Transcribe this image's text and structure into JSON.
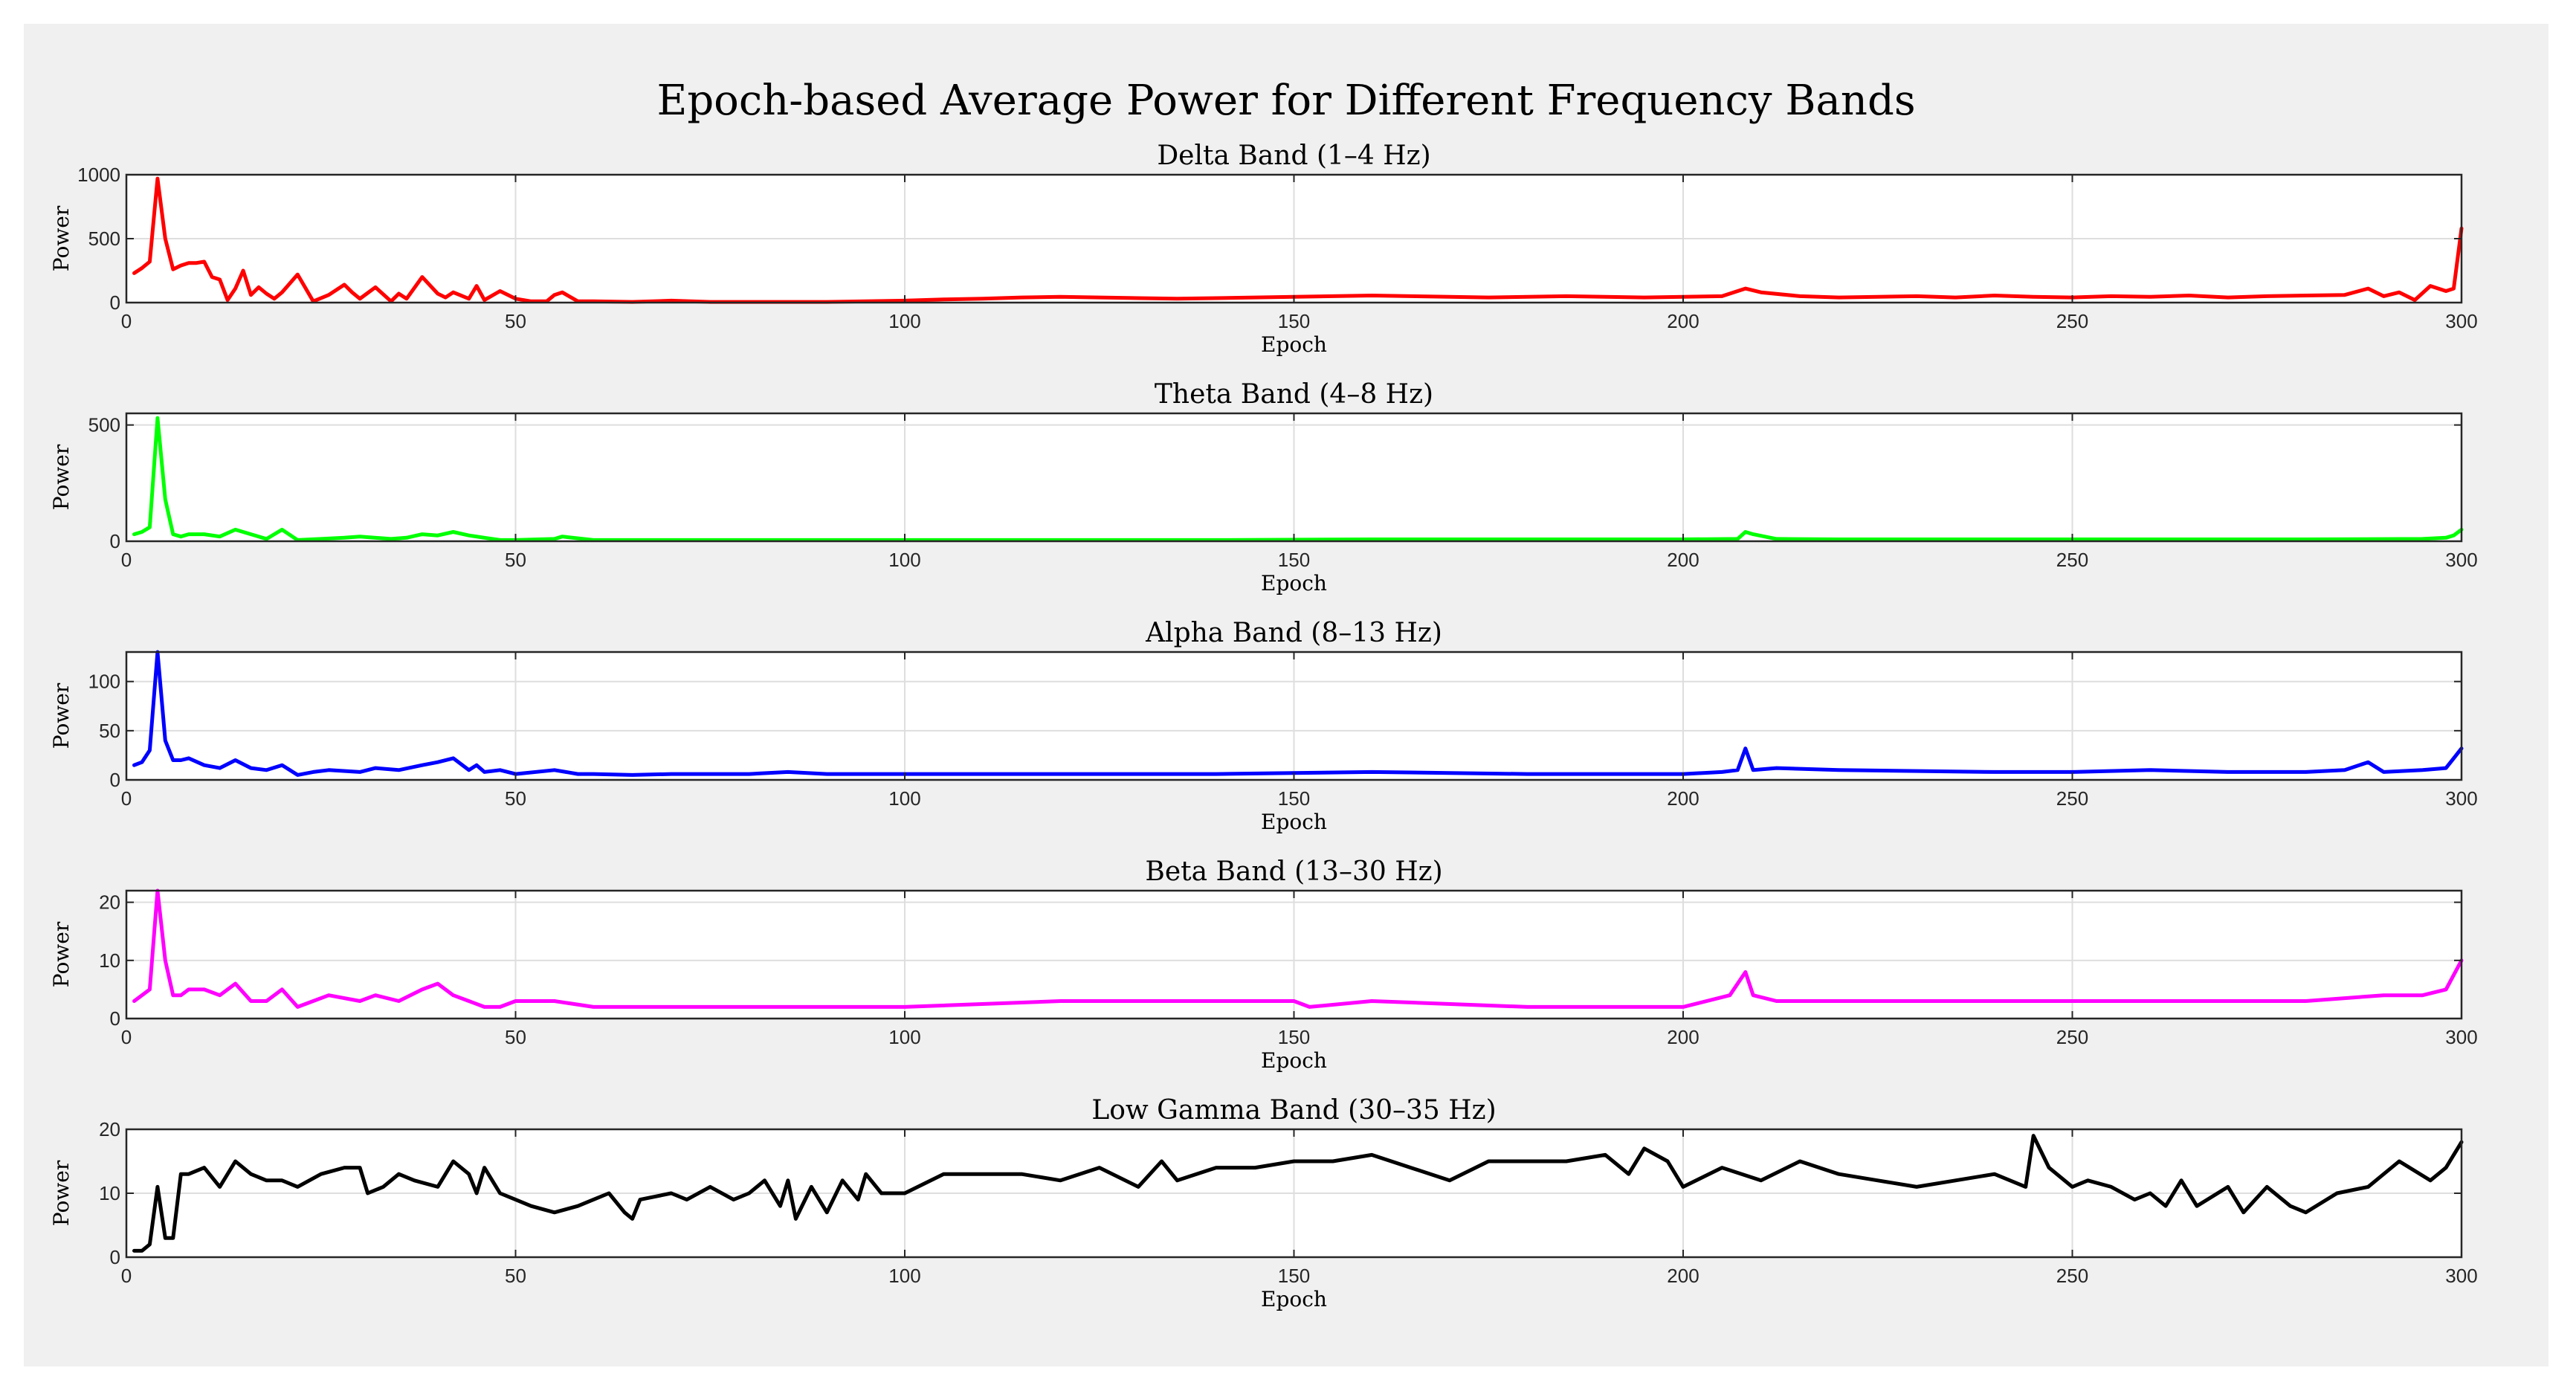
{
  "figure": {
    "title": "Epoch-based Average Power for Different Frequency Bands",
    "background": "#f0f0f0",
    "plot_background": "#ffffff"
  },
  "chart_data": [
    {
      "type": "line",
      "title": "Delta Band (1–4 Hz)",
      "xlabel": "Epoch",
      "ylabel": "Power",
      "color": "#ff0000",
      "xlim": [
        0,
        300
      ],
      "ylim": [
        0,
        1000
      ],
      "xticks": [
        0,
        50,
        100,
        150,
        200,
        250,
        300
      ],
      "yticks": [
        0,
        500,
        1000
      ],
      "grid": true,
      "series": [
        {
          "name": "Delta",
          "x": [
            1,
            2,
            3,
            4,
            5,
            6,
            7,
            8,
            9,
            10,
            11,
            12,
            13,
            14,
            15,
            16,
            17,
            18,
            19,
            20,
            22,
            24,
            26,
            28,
            29,
            30,
            32,
            34,
            35,
            36,
            38,
            40,
            41,
            42,
            44,
            45,
            46,
            48,
            50,
            52,
            54,
            55,
            56,
            58,
            60,
            65,
            70,
            75,
            80,
            85,
            90,
            95,
            100,
            105,
            110,
            115,
            120,
            125,
            130,
            135,
            140,
            145,
            150,
            155,
            160,
            165,
            170,
            175,
            180,
            185,
            190,
            195,
            200,
            205,
            208,
            210,
            215,
            220,
            225,
            230,
            235,
            240,
            245,
            250,
            255,
            260,
            265,
            270,
            275,
            280,
            285,
            288,
            290,
            292,
            294,
            296,
            298,
            299,
            300
          ],
          "y": [
            230,
            270,
            320,
            970,
            500,
            260,
            290,
            310,
            310,
            320,
            200,
            180,
            20,
            110,
            250,
            60,
            120,
            70,
            30,
            80,
            220,
            10,
            60,
            140,
            80,
            30,
            120,
            10,
            70,
            30,
            200,
            70,
            40,
            80,
            30,
            130,
            20,
            90,
            30,
            10,
            10,
            60,
            80,
            10,
            10,
            5,
            15,
            5,
            5,
            5,
            5,
            10,
            15,
            25,
            30,
            40,
            45,
            40,
            35,
            30,
            35,
            40,
            45,
            50,
            55,
            50,
            45,
            40,
            45,
            50,
            45,
            40,
            45,
            50,
            110,
            80,
            50,
            40,
            45,
            50,
            40,
            55,
            45,
            40,
            50,
            45,
            55,
            40,
            50,
            55,
            60,
            110,
            50,
            80,
            20,
            130,
            90,
            110,
            580
          ]
        }
      ]
    },
    {
      "type": "line",
      "title": "Theta Band (4–8 Hz)",
      "xlabel": "Epoch",
      "ylabel": "Power",
      "color": "#00ff00",
      "xlim": [
        0,
        300
      ],
      "ylim": [
        0,
        550
      ],
      "xticks": [
        0,
        50,
        100,
        150,
        200,
        250,
        300
      ],
      "yticks": [
        0,
        500
      ],
      "grid": true,
      "series": [
        {
          "name": "Theta",
          "x": [
            1,
            2,
            3,
            4,
            5,
            6,
            7,
            8,
            10,
            12,
            14,
            16,
            18,
            20,
            22,
            25,
            28,
            30,
            34,
            36,
            38,
            40,
            42,
            44,
            46,
            48,
            50,
            55,
            56,
            60,
            70,
            80,
            90,
            100,
            120,
            140,
            160,
            180,
            200,
            207,
            208,
            209,
            212,
            220,
            240,
            260,
            280,
            295,
            298,
            299,
            300
          ],
          "y": [
            30,
            40,
            60,
            530,
            180,
            30,
            20,
            30,
            30,
            20,
            50,
            30,
            10,
            50,
            5,
            10,
            15,
            20,
            10,
            15,
            30,
            25,
            40,
            25,
            15,
            5,
            5,
            10,
            20,
            5,
            5,
            5,
            5,
            5,
            5,
            5,
            8,
            8,
            8,
            10,
            40,
            30,
            10,
            8,
            8,
            8,
            8,
            10,
            15,
            25,
            50
          ]
        }
      ]
    },
    {
      "type": "line",
      "title": "Alpha Band (8–13 Hz)",
      "xlabel": "Epoch",
      "ylabel": "Power",
      "color": "#0000ff",
      "xlim": [
        0,
        300
      ],
      "ylim": [
        0,
        130
      ],
      "xticks": [
        0,
        50,
        100,
        150,
        200,
        250,
        300
      ],
      "yticks": [
        0,
        50,
        100
      ],
      "grid": true,
      "series": [
        {
          "name": "Alpha",
          "x": [
            1,
            2,
            3,
            4,
            5,
            6,
            7,
            8,
            10,
            12,
            14,
            16,
            18,
            20,
            22,
            24,
            26,
            30,
            32,
            35,
            38,
            40,
            42,
            44,
            45,
            46,
            48,
            50,
            55,
            58,
            60,
            65,
            70,
            75,
            80,
            85,
            90,
            95,
            100,
            120,
            140,
            160,
            180,
            200,
            205,
            207,
            208,
            209,
            212,
            220,
            240,
            250,
            260,
            270,
            280,
            285,
            288,
            290,
            295,
            298,
            300
          ],
          "y": [
            15,
            18,
            30,
            130,
            40,
            20,
            20,
            22,
            15,
            12,
            20,
            12,
            10,
            15,
            5,
            8,
            10,
            8,
            12,
            10,
            15,
            18,
            22,
            10,
            15,
            8,
            10,
            6,
            10,
            6,
            6,
            5,
            6,
            6,
            6,
            8,
            6,
            6,
            6,
            6,
            6,
            8,
            6,
            6,
            8,
            10,
            32,
            10,
            12,
            10,
            8,
            8,
            10,
            8,
            8,
            10,
            18,
            8,
            10,
            12,
            32
          ]
        }
      ]
    },
    {
      "type": "line",
      "title": "Beta Band (13–30 Hz)",
      "xlabel": "Epoch",
      "ylabel": "Power",
      "color": "#ff00ff",
      "xlim": [
        0,
        300
      ],
      "ylim": [
        0,
        22
      ],
      "xticks": [
        0,
        50,
        100,
        150,
        200,
        250,
        300
      ],
      "yticks": [
        0,
        10,
        20
      ],
      "grid": true,
      "series": [
        {
          "name": "Beta",
          "x": [
            1,
            2,
            3,
            4,
            5,
            6,
            7,
            8,
            10,
            12,
            14,
            16,
            18,
            20,
            22,
            24,
            26,
            30,
            32,
            35,
            38,
            40,
            42,
            44,
            46,
            48,
            50,
            55,
            60,
            70,
            80,
            90,
            100,
            120,
            140,
            150,
            152,
            160,
            180,
            200,
            206,
            208,
            209,
            212,
            220,
            240,
            260,
            280,
            290,
            295,
            298,
            300
          ],
          "y": [
            3,
            4,
            5,
            22,
            10,
            4,
            4,
            5,
            5,
            4,
            6,
            3,
            3,
            5,
            2,
            3,
            4,
            3,
            4,
            3,
            5,
            6,
            4,
            3,
            2,
            2,
            3,
            3,
            2,
            2,
            2,
            2,
            2,
            3,
            3,
            3,
            2,
            3,
            2,
            2,
            4,
            8,
            4,
            3,
            3,
            3,
            3,
            3,
            4,
            4,
            5,
            10
          ]
        }
      ]
    },
    {
      "type": "line",
      "title": "Low Gamma Band (30–35 Hz)",
      "xlabel": "Epoch",
      "ylabel": "Power",
      "color": "#000000",
      "xlim": [
        0,
        300
      ],
      "ylim": [
        0,
        20
      ],
      "xticks": [
        0,
        50,
        100,
        150,
        200,
        250,
        300
      ],
      "yticks": [
        0,
        10,
        20
      ],
      "grid": true,
      "series": [
        {
          "name": "Low Gamma",
          "x": [
            1,
            2,
            3,
            4,
            5,
            6,
            7,
            8,
            10,
            12,
            14,
            16,
            18,
            20,
            22,
            25,
            28,
            30,
            31,
            33,
            35,
            37,
            40,
            42,
            44,
            45,
            46,
            48,
            50,
            52,
            55,
            58,
            60,
            62,
            64,
            65,
            66,
            70,
            72,
            75,
            78,
            80,
            82,
            84,
            85,
            86,
            88,
            90,
            92,
            94,
            95,
            97,
            100,
            105,
            110,
            115,
            120,
            125,
            130,
            133,
            135,
            140,
            145,
            150,
            155,
            160,
            165,
            170,
            175,
            180,
            185,
            190,
            193,
            195,
            198,
            200,
            205,
            210,
            215,
            220,
            225,
            230,
            235,
            240,
            244,
            245,
            247,
            250,
            252,
            255,
            258,
            260,
            262,
            264,
            266,
            270,
            272,
            275,
            278,
            280,
            284,
            288,
            292,
            296,
            298,
            300
          ],
          "y": [
            1,
            1,
            2,
            11,
            3,
            3,
            13,
            13,
            14,
            11,
            15,
            13,
            12,
            12,
            11,
            13,
            14,
            14,
            10,
            11,
            13,
            12,
            11,
            15,
            13,
            10,
            14,
            10,
            9,
            8,
            7,
            8,
            9,
            10,
            7,
            6,
            9,
            10,
            9,
            11,
            9,
            10,
            12,
            8,
            12,
            6,
            11,
            7,
            12,
            9,
            13,
            10,
            10,
            13,
            13,
            13,
            12,
            14,
            11,
            15,
            12,
            14,
            14,
            15,
            15,
            16,
            14,
            12,
            15,
            15,
            15,
            16,
            13,
            17,
            15,
            11,
            14,
            12,
            15,
            13,
            12,
            11,
            12,
            13,
            11,
            19,
            14,
            11,
            12,
            11,
            9,
            10,
            8,
            12,
            8,
            11,
            7,
            11,
            8,
            7,
            10,
            11,
            15,
            12,
            14,
            18
          ]
        }
      ]
    }
  ]
}
